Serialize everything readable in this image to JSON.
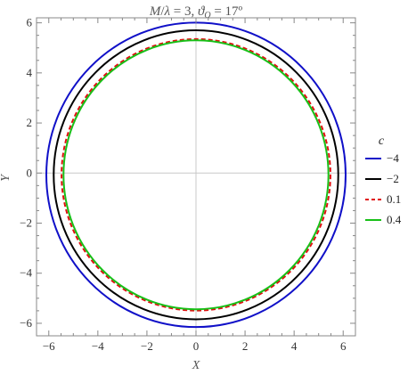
{
  "chart_data": {
    "type": "line",
    "title": "M/λ = 3, ϑ_O = 17º",
    "title_parts": {
      "lhs": "M",
      "sep": "/",
      "lam": "λ",
      "eq1": " = 3, ",
      "theta": "ϑ",
      "sub": "O",
      "eq2": " = 17º"
    },
    "xlabel": "X",
    "ylabel": "Y",
    "xlim": [
      -6.5,
      6.5
    ],
    "ylim": [
      -6.5,
      6.2
    ],
    "xticks": [
      -6,
      -4,
      -2,
      0,
      2,
      4,
      6
    ],
    "yticks": [
      -6,
      -4,
      -2,
      0,
      2,
      4,
      6
    ],
    "xtick_labels": [
      "−6",
      "−4",
      "−2",
      "0",
      "2",
      "4",
      "6"
    ],
    "ytick_labels": [
      "−6",
      "−4",
      "−2",
      "0",
      "2",
      "4",
      "6"
    ],
    "grid": false,
    "axes_lines_through_origin": true,
    "legend": {
      "title": "c",
      "placement": "right"
    },
    "series": [
      {
        "name": "−4",
        "color": "#1010c8",
        "dash": "solid",
        "center": [
          0.0,
          -0.07
        ],
        "rx": 6.1,
        "ry": 6.08
      },
      {
        "name": "−2",
        "color": "#000000",
        "dash": "solid",
        "center": [
          0.0,
          -0.07
        ],
        "rx": 5.8,
        "ry": 5.77
      },
      {
        "name": "0.1",
        "color": "#e01010",
        "dash": "dashed",
        "center": [
          0.0,
          -0.07
        ],
        "rx": 5.48,
        "ry": 5.42
      },
      {
        "name": "0.4",
        "color": "#18c018",
        "dash": "solid",
        "center": [
          0.0,
          -0.07
        ],
        "rx": 5.4,
        "ry": 5.37
      }
    ]
  }
}
